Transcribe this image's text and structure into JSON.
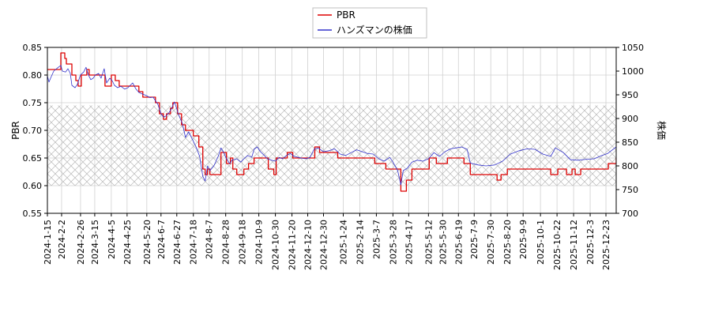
{
  "chart_data": {
    "type": "line",
    "x_tick_labels": [
      "2024-1-15",
      "2024-2-2",
      "2024-2-26",
      "2024-3-15",
      "2024-4-5",
      "2024-4-25",
      "2024-5-20",
      "2024-6-7",
      "2024-6-27",
      "2024-7-18",
      "2024-8-7",
      "2024-8-28",
      "2024-9-18",
      "2024-10-9",
      "2024-10-30",
      "2024-11-20",
      "2024-12-10",
      "2024-12-30",
      "2025-1-24",
      "2025-2-14",
      "2025-3-7",
      "2025-3-28",
      "2025-4-17",
      "2025-5-12",
      "2025-5-30",
      "2025-6-19",
      "2025-7-9",
      "2025-7-30",
      "2025-8-20",
      "2025-9-9",
      "2025-10-1",
      "2025-10-22",
      "2025-11-12",
      "2025-12-3",
      "2025-12-23"
    ],
    "x_range": [
      "2024-01-15",
      "2026-01-05"
    ],
    "left_axis": {
      "label": "PBR",
      "range": [
        0.55,
        0.85
      ],
      "ticks": [
        "0.55",
        "0.60",
        "0.65",
        "0.70",
        "0.75",
        "0.80",
        "0.85"
      ]
    },
    "right_axis": {
      "label": "株価",
      "range": [
        700,
        1050
      ],
      "ticks": [
        "700",
        "750",
        "800",
        "850",
        "900",
        "950",
        "1000",
        "1050"
      ]
    },
    "shaded_band": {
      "axis": "left",
      "from": 0.6,
      "to": 0.745,
      "pattern": "crosshatch"
    },
    "grid": true,
    "legend_position": "top-center",
    "series": [
      {
        "name": "PBR",
        "axis": "left",
        "color": "#dd0000",
        "style": "step",
        "points": [
          [
            "2024-01-15",
            0.81
          ],
          [
            "2024-01-30",
            0.81
          ],
          [
            "2024-02-01",
            0.84
          ],
          [
            "2024-02-06",
            0.83
          ],
          [
            "2024-02-08",
            0.82
          ],
          [
            "2024-02-15",
            0.8
          ],
          [
            "2024-02-20",
            0.79
          ],
          [
            "2024-02-23",
            0.78
          ],
          [
            "2024-02-27",
            0.8
          ],
          [
            "2024-03-05",
            0.81
          ],
          [
            "2024-03-08",
            0.8
          ],
          [
            "2024-03-25",
            0.8
          ],
          [
            "2024-03-28",
            0.78
          ],
          [
            "2024-04-05",
            0.8
          ],
          [
            "2024-04-10",
            0.79
          ],
          [
            "2024-04-15",
            0.78
          ],
          [
            "2024-05-08",
            0.78
          ],
          [
            "2024-05-10",
            0.77
          ],
          [
            "2024-05-15",
            0.76
          ],
          [
            "2024-05-27",
            0.76
          ],
          [
            "2024-05-31",
            0.75
          ],
          [
            "2024-06-05",
            0.73
          ],
          [
            "2024-06-10",
            0.72
          ],
          [
            "2024-06-14",
            0.73
          ],
          [
            "2024-06-19",
            0.74
          ],
          [
            "2024-06-22",
            0.75
          ],
          [
            "2024-06-28",
            0.73
          ],
          [
            "2024-07-03",
            0.71
          ],
          [
            "2024-07-08",
            0.7
          ],
          [
            "2024-07-18",
            0.69
          ],
          [
            "2024-07-25",
            0.67
          ],
          [
            "2024-07-30",
            0.63
          ],
          [
            "2024-08-02",
            0.62
          ],
          [
            "2024-08-05",
            0.63
          ],
          [
            "2024-08-08",
            0.62
          ],
          [
            "2024-08-22",
            0.66
          ],
          [
            "2024-08-29",
            0.64
          ],
          [
            "2024-09-03",
            0.65
          ],
          [
            "2024-09-06",
            0.63
          ],
          [
            "2024-09-11",
            0.62
          ],
          [
            "2024-09-20",
            0.63
          ],
          [
            "2024-09-26",
            0.64
          ],
          [
            "2024-10-03",
            0.65
          ],
          [
            "2024-10-21",
            0.63
          ],
          [
            "2024-10-28",
            0.62
          ],
          [
            "2024-10-31",
            0.65
          ],
          [
            "2024-11-07",
            0.65
          ],
          [
            "2024-11-14",
            0.66
          ],
          [
            "2024-11-21",
            0.65
          ],
          [
            "2024-12-04",
            0.65
          ],
          [
            "2024-12-11",
            0.65
          ],
          [
            "2024-12-19",
            0.67
          ],
          [
            "2024-12-25",
            0.66
          ],
          [
            "2025-01-10",
            0.66
          ],
          [
            "2025-01-17",
            0.65
          ],
          [
            "2025-02-05",
            0.65
          ],
          [
            "2025-02-26",
            0.65
          ],
          [
            "2025-03-05",
            0.64
          ],
          [
            "2025-03-19",
            0.63
          ],
          [
            "2025-03-27",
            0.63
          ],
          [
            "2025-04-07",
            0.59
          ],
          [
            "2025-04-14",
            0.61
          ],
          [
            "2025-04-21",
            0.63
          ],
          [
            "2025-05-08",
            0.63
          ],
          [
            "2025-05-13",
            0.65
          ],
          [
            "2025-05-22",
            0.64
          ],
          [
            "2025-06-05",
            0.65
          ],
          [
            "2025-06-16",
            0.65
          ],
          [
            "2025-06-26",
            0.64
          ],
          [
            "2025-07-04",
            0.62
          ],
          [
            "2025-07-25",
            0.62
          ],
          [
            "2025-08-07",
            0.61
          ],
          [
            "2025-08-12",
            0.62
          ],
          [
            "2025-08-20",
            0.63
          ],
          [
            "2025-09-25",
            0.63
          ],
          [
            "2025-10-14",
            0.62
          ],
          [
            "2025-10-23",
            0.63
          ],
          [
            "2025-11-03",
            0.62
          ],
          [
            "2025-11-10",
            0.63
          ],
          [
            "2025-11-14",
            0.62
          ],
          [
            "2025-11-21",
            0.63
          ],
          [
            "2025-12-19",
            0.63
          ],
          [
            "2025-12-26",
            0.64
          ],
          [
            "2026-01-05",
            0.65
          ]
        ]
      },
      {
        "name": "ハンズマンの株価",
        "axis": "right",
        "color": "#3333cc",
        "style": "line",
        "points": [
          [
            "2024-01-15",
            990
          ],
          [
            "2024-01-17",
            977
          ],
          [
            "2024-01-19",
            985
          ],
          [
            "2024-01-23",
            1000
          ],
          [
            "2024-01-28",
            1007
          ],
          [
            "2024-02-01",
            1012
          ],
          [
            "2024-02-03",
            1000
          ],
          [
            "2024-02-07",
            998
          ],
          [
            "2024-02-10",
            1005
          ],
          [
            "2024-02-13",
            995
          ],
          [
            "2024-02-15",
            970
          ],
          [
            "2024-02-19",
            965
          ],
          [
            "2024-02-22",
            972
          ],
          [
            "2024-02-26",
            992
          ],
          [
            "2024-03-01",
            998
          ],
          [
            "2024-03-04",
            1008
          ],
          [
            "2024-03-07",
            992
          ],
          [
            "2024-03-10",
            982
          ],
          [
            "2024-03-13",
            985
          ],
          [
            "2024-03-16",
            992
          ],
          [
            "2024-03-20",
            995
          ],
          [
            "2024-03-23",
            985
          ],
          [
            "2024-03-27",
            1005
          ],
          [
            "2024-03-30",
            975
          ],
          [
            "2024-04-03",
            985
          ],
          [
            "2024-04-06",
            980
          ],
          [
            "2024-04-09",
            970
          ],
          [
            "2024-04-13",
            965
          ],
          [
            "2024-04-17",
            968
          ],
          [
            "2024-04-22",
            962
          ],
          [
            "2024-04-26",
            965
          ],
          [
            "2024-04-29",
            970
          ],
          [
            "2024-05-02",
            975
          ],
          [
            "2024-05-06",
            963
          ],
          [
            "2024-05-10",
            955
          ],
          [
            "2024-05-14",
            952
          ],
          [
            "2024-05-20",
            948
          ],
          [
            "2024-05-24",
            944
          ],
          [
            "2024-05-28",
            945
          ],
          [
            "2024-06-03",
            930
          ],
          [
            "2024-06-07",
            910
          ],
          [
            "2024-06-10",
            903
          ],
          [
            "2024-06-13",
            905
          ],
          [
            "2024-06-17",
            912
          ],
          [
            "2024-06-20",
            920
          ],
          [
            "2024-06-24",
            935
          ],
          [
            "2024-06-27",
            920
          ],
          [
            "2024-06-30",
            905
          ],
          [
            "2024-07-04",
            890
          ],
          [
            "2024-07-06",
            875
          ],
          [
            "2024-07-08",
            860
          ],
          [
            "2024-07-12",
            872
          ],
          [
            "2024-07-15",
            862
          ],
          [
            "2024-07-18",
            852
          ],
          [
            "2024-07-22",
            838
          ],
          [
            "2024-07-26",
            820
          ],
          [
            "2024-07-30",
            778
          ],
          [
            "2024-08-02",
            768
          ],
          [
            "2024-08-05",
            800
          ],
          [
            "2024-08-08",
            790
          ],
          [
            "2024-08-13",
            800
          ],
          [
            "2024-08-19",
            822
          ],
          [
            "2024-08-22",
            838
          ],
          [
            "2024-08-25",
            830
          ],
          [
            "2024-08-28",
            818
          ],
          [
            "2024-09-02",
            805
          ],
          [
            "2024-09-05",
            812
          ],
          [
            "2024-09-11",
            815
          ],
          [
            "2024-09-16",
            808
          ],
          [
            "2024-09-20",
            815
          ],
          [
            "2024-09-25",
            822
          ],
          [
            "2024-09-30",
            818
          ],
          [
            "2024-10-03",
            835
          ],
          [
            "2024-10-07",
            840
          ],
          [
            "2024-10-11",
            830
          ],
          [
            "2024-10-16",
            822
          ],
          [
            "2024-10-20",
            815
          ],
          [
            "2024-10-25",
            812
          ],
          [
            "2024-10-30",
            810
          ],
          [
            "2024-11-04",
            818
          ],
          [
            "2024-11-08",
            815
          ],
          [
            "2024-11-13",
            822
          ],
          [
            "2024-11-18",
            826
          ],
          [
            "2024-11-23",
            820
          ],
          [
            "2024-11-28",
            818
          ],
          [
            "2024-12-03",
            816
          ],
          [
            "2024-12-08",
            815
          ],
          [
            "2024-12-13",
            818
          ],
          [
            "2024-12-18",
            835
          ],
          [
            "2024-12-23",
            838
          ],
          [
            "2024-12-30",
            830
          ],
          [
            "2025-01-06",
            832
          ],
          [
            "2025-01-13",
            836
          ],
          [
            "2025-01-20",
            825
          ],
          [
            "2025-01-27",
            822
          ],
          [
            "2025-02-03",
            828
          ],
          [
            "2025-02-10",
            834
          ],
          [
            "2025-02-17",
            830
          ],
          [
            "2025-02-24",
            826
          ],
          [
            "2025-03-03",
            825
          ],
          [
            "2025-03-10",
            815
          ],
          [
            "2025-03-17",
            810
          ],
          [
            "2025-03-24",
            818
          ],
          [
            "2025-03-28",
            808
          ],
          [
            "2025-04-03",
            790
          ],
          [
            "2025-04-07",
            760
          ],
          [
            "2025-04-10",
            790
          ],
          [
            "2025-04-15",
            795
          ],
          [
            "2025-04-21",
            808
          ],
          [
            "2025-04-28",
            812
          ],
          [
            "2025-05-05",
            810
          ],
          [
            "2025-05-12",
            815
          ],
          [
            "2025-05-19",
            828
          ],
          [
            "2025-05-26",
            820
          ],
          [
            "2025-06-02",
            830
          ],
          [
            "2025-06-09",
            836
          ],
          [
            "2025-06-16",
            838
          ],
          [
            "2025-06-23",
            840
          ],
          [
            "2025-06-30",
            835
          ],
          [
            "2025-07-04",
            806
          ],
          [
            "2025-07-14",
            802
          ],
          [
            "2025-07-24",
            800
          ],
          [
            "2025-08-04",
            802
          ],
          [
            "2025-08-14",
            810
          ],
          [
            "2025-08-24",
            825
          ],
          [
            "2025-09-04",
            832
          ],
          [
            "2025-09-14",
            836
          ],
          [
            "2025-09-24",
            835
          ],
          [
            "2025-10-04",
            825
          ],
          [
            "2025-10-14",
            820
          ],
          [
            "2025-10-20",
            838
          ],
          [
            "2025-10-30",
            828
          ],
          [
            "2025-11-08",
            813
          ],
          [
            "2025-11-18",
            812
          ],
          [
            "2025-11-28",
            814
          ],
          [
            "2025-12-08",
            815
          ],
          [
            "2025-12-18",
            822
          ],
          [
            "2025-12-25",
            826
          ],
          [
            "2026-01-05",
            840
          ]
        ]
      }
    ]
  }
}
